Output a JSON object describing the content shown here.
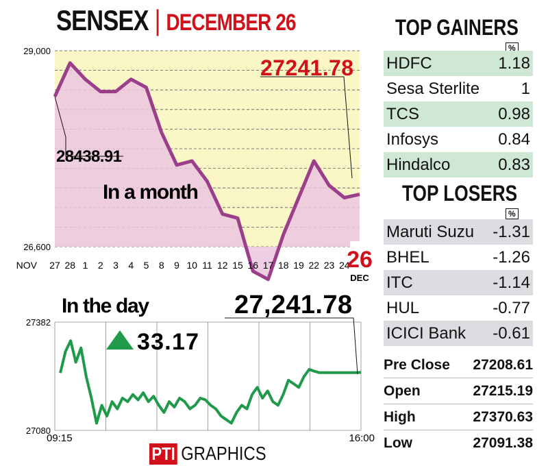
{
  "header": {
    "title": "SENSEX",
    "separator": "|",
    "date": "DECEMBER 26"
  },
  "gainers": {
    "title": "TOP GAINERS",
    "unit": "%",
    "items": [
      {
        "name": "HDFC",
        "value": "1.18"
      },
      {
        "name": "Sesa Sterlite",
        "value": "1"
      },
      {
        "name": "TCS",
        "value": "0.98"
      },
      {
        "name": "Infosys",
        "value": "0.84"
      },
      {
        "name": "Hindalco",
        "value": "0.83"
      }
    ]
  },
  "losers": {
    "title": "TOP LOSERS",
    "unit": "%",
    "items": [
      {
        "name": "Maruti Suzu",
        "value": "-1.31"
      },
      {
        "name": "BHEL",
        "value": "-1.26"
      },
      {
        "name": "ITC",
        "value": "-1.14"
      },
      {
        "name": "HUL",
        "value": "-0.77"
      },
      {
        "name": "ICICI Bank",
        "value": "-0.61"
      }
    ]
  },
  "stats": [
    {
      "label": "Pre Close",
      "value": "27208.61"
    },
    {
      "label": "Open",
      "value": "27215.19"
    },
    {
      "label": "High",
      "value": "27370.63"
    },
    {
      "label": "Low",
      "value": "27091.38"
    }
  ],
  "footer": {
    "brand": "PTI",
    "text": "GRAPHICS"
  },
  "colors": {
    "accent_red": "#d0111a",
    "month_line": "#9b3f8a",
    "month_fill": "#ebc6e0",
    "month_bg": "#fbf6c6",
    "day_line": "#1f9a4a",
    "gainer_row": "#cfe7d5",
    "loser_row": "#dcdde0"
  },
  "chart_data": [
    {
      "type": "area",
      "title": "In a month",
      "month_label": "NOV",
      "end_month_label": "DEC",
      "ylim": [
        26600,
        29000
      ],
      "yticks": [
        "29,000",
        "26,600"
      ],
      "ytick_values": [
        29000,
        26600
      ],
      "categories": [
        "27",
        "28",
        "1",
        "2",
        "3",
        "4",
        "5",
        "8",
        "9",
        "10",
        "11",
        "12",
        "15",
        "16",
        "17",
        "18",
        "19",
        "22",
        "23",
        "24",
        "26"
      ],
      "values": [
        28438.91,
        28850,
        28650,
        28500,
        28500,
        28650,
        28550,
        28000,
        27600,
        27650,
        27400,
        27000,
        26950,
        26300,
        26200,
        26750,
        27200,
        27650,
        27350,
        27200,
        27241.78
      ],
      "start_label": "28438.91",
      "end_label": "27241.78",
      "grid": true
    },
    {
      "type": "line",
      "title": "In the day",
      "ylim": [
        27080,
        27382
      ],
      "yticks": [
        "27382",
        "27080"
      ],
      "ytick_values": [
        27382,
        27080
      ],
      "x_start_label": "09:15",
      "x_end_label": "16:00",
      "change": "33.17",
      "close_label": "27,241.78",
      "values": [
        27240,
        27300,
        27330,
        27270,
        27310,
        27230,
        27170,
        27100,
        27150,
        27120,
        27160,
        27140,
        27170,
        27160,
        27180,
        27165,
        27185,
        27160,
        27175,
        27150,
        27130,
        27160,
        27145,
        27170,
        27160,
        27140,
        27150,
        27170,
        27165,
        27150,
        27140,
        27120,
        27110,
        27100,
        27130,
        27150,
        27140,
        27180,
        27200,
        27170,
        27190,
        27160,
        27150,
        27180,
        27220,
        27210,
        27200,
        27230,
        27250,
        27245,
        27241,
        27241,
        27241,
        27241,
        27241,
        27241,
        27241,
        27241,
        27241.78
      ]
    }
  ]
}
